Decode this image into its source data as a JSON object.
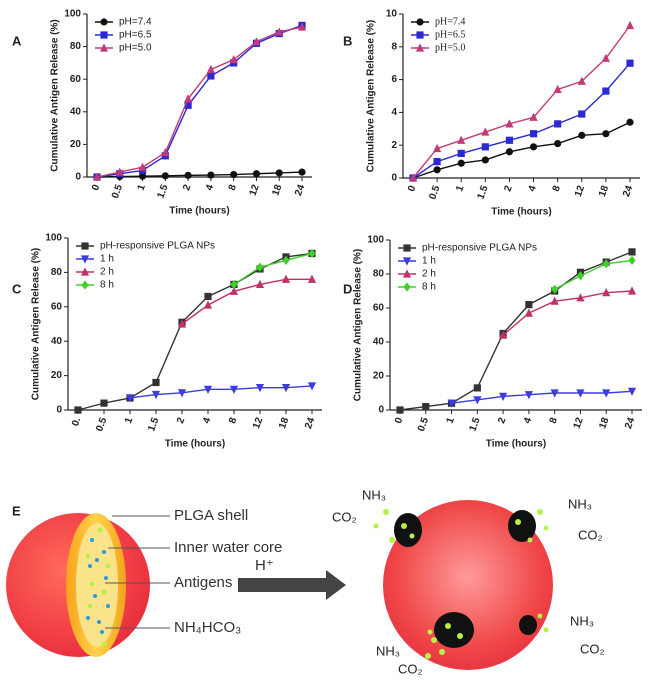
{
  "chart_data": [
    {
      "type": "line",
      "label": "A",
      "ylabel": "Cumulative Antigen Release (%)",
      "xlabel": "Time (hours)",
      "categories": [
        "0",
        "0.5",
        "1",
        "1.5",
        "2",
        "4",
        "8",
        "12",
        "18",
        "24"
      ],
      "ylim": [
        0,
        100
      ],
      "yticks": [
        0,
        20,
        40,
        60,
        80,
        100
      ],
      "legend": "upper left",
      "series": [
        {
          "name": "pH=7.4",
          "color": "#111111",
          "marker": "circle",
          "values": [
            0,
            0.3,
            0.5,
            0.7,
            1,
            1.2,
            1.5,
            2,
            2.5,
            3
          ]
        },
        {
          "name": "pH=6.5",
          "color": "#2a2ad0",
          "marker": "square",
          "values": [
            0,
            2,
            4,
            13,
            44,
            62,
            70,
            82,
            88,
            93
          ]
        },
        {
          "name": "pH=5.0",
          "color": "#c33a78",
          "marker": "triangle-up",
          "values": [
            0,
            3,
            6,
            15,
            48,
            66,
            72,
            83,
            89,
            92
          ]
        }
      ]
    },
    {
      "type": "line",
      "label": "B",
      "ylabel": "Cumulative Antigen Release (%)",
      "xlabel": "Time (hours)",
      "categories": [
        "0",
        "0.5",
        "1",
        "1.5",
        "2",
        "4",
        "8",
        "12",
        "18",
        "24"
      ],
      "ylim": [
        0,
        10
      ],
      "yticks": [
        0,
        2,
        4,
        6,
        8,
        10
      ],
      "legend": "upper left",
      "series": [
        {
          "name": "pH=7.4",
          "color": "#111111",
          "marker": "circle",
          "values": [
            0,
            0.5,
            0.9,
            1.1,
            1.6,
            1.9,
            2.1,
            2.6,
            2.7,
            3.4
          ]
        },
        {
          "name": "pH=6.5",
          "color": "#2a2ad0",
          "marker": "square",
          "values": [
            0,
            1,
            1.5,
            1.9,
            2.3,
            2.7,
            3.3,
            3.9,
            5.3,
            7
          ]
        },
        {
          "name": "pH=5.0",
          "color": "#c33a78",
          "marker": "triangle-up",
          "values": [
            0,
            1.8,
            2.3,
            2.8,
            3.3,
            3.7,
            5.4,
            5.9,
            7.3,
            9.3
          ]
        }
      ]
    },
    {
      "type": "line",
      "label": "C",
      "ylabel": "Cumulative Antigen Release (%)",
      "xlabel": "Time (hours)",
      "categories": [
        "0.",
        "0.5",
        "1",
        "1.5",
        "2",
        "4",
        "8",
        "12",
        "18",
        "24"
      ],
      "ylim": [
        0,
        100
      ],
      "yticks": [
        0,
        20,
        40,
        60,
        80,
        100
      ],
      "legend": "upper left",
      "series": [
        {
          "name": "pH-responsive PLGA NPs",
          "color": "#333333",
          "marker": "square",
          "values": [
            0,
            4,
            7,
            16,
            51,
            66,
            73,
            82,
            89,
            91
          ]
        },
        {
          "name": "1 h",
          "color": "#3b3be0",
          "marker": "triangle-down",
          "values": [
            null,
            null,
            7,
            9,
            10,
            12,
            12,
            13,
            13,
            14
          ]
        },
        {
          "name": "2 h",
          "color": "#c0306a",
          "marker": "triangle-up",
          "values": [
            null,
            null,
            null,
            null,
            50,
            61,
            69,
            73,
            76,
            76
          ]
        },
        {
          "name": "8 h",
          "color": "#3ecf2a",
          "marker": "diamond",
          "values": [
            null,
            null,
            null,
            null,
            null,
            null,
            73,
            83,
            87,
            91
          ]
        }
      ]
    },
    {
      "type": "line",
      "label": "D",
      "ylabel": "Cumulative Antigen Release (%)",
      "xlabel": "Time (hours)",
      "categories": [
        "0",
        "0.5",
        "1",
        "1.5",
        "2",
        "4",
        "8",
        "12",
        "18",
        "24"
      ],
      "ylim": [
        0,
        100
      ],
      "yticks": [
        0,
        20,
        40,
        60,
        80,
        100
      ],
      "legend": "upper left",
      "series": [
        {
          "name": "pH-responsive PLGA NPs",
          "color": "#333333",
          "marker": "square",
          "values": [
            0,
            2,
            4,
            13,
            45,
            62,
            70,
            81,
            87,
            93
          ]
        },
        {
          "name": "1 h",
          "color": "#3b3be0",
          "marker": "triangle-down",
          "values": [
            null,
            null,
            4,
            6,
            8,
            9,
            10,
            10,
            10,
            11
          ]
        },
        {
          "name": "2 h",
          "color": "#c0306a",
          "marker": "triangle-up",
          "values": [
            null,
            null,
            null,
            null,
            44,
            57,
            64,
            66,
            69,
            70
          ]
        },
        {
          "name": "8 h",
          "color": "#3ecf2a",
          "marker": "diamond",
          "values": [
            null,
            null,
            null,
            null,
            null,
            null,
            71,
            79,
            86,
            88
          ]
        }
      ]
    }
  ],
  "diagram": {
    "label": "E",
    "parts": [
      "PLGA shell",
      "Inner water core",
      "Antigens",
      "NH₄HCO₃"
    ],
    "trigger": "H⁺",
    "gases": [
      "NH₃",
      "CO₂",
      "NH₃",
      "CO₂",
      "NH₃",
      "CO₂",
      "NH₃",
      "CO₂"
    ]
  }
}
